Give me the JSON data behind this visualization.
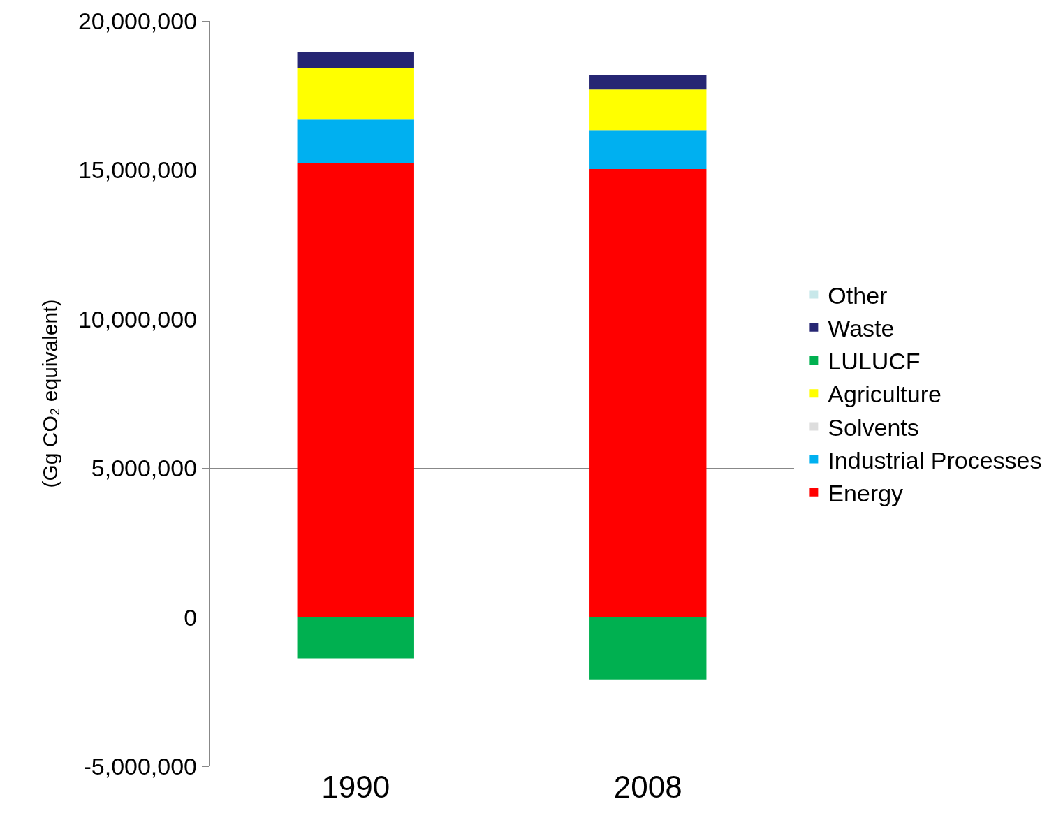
{
  "chart_data": {
    "type": "bar",
    "stacked": true,
    "ylabel": "(Gg CO₂ equivalent)",
    "categories": [
      "1990",
      "2008"
    ],
    "series": [
      {
        "name": "Energy",
        "color": "#ff0000",
        "values": [
          15240000,
          15030000
        ]
      },
      {
        "name": "Industrial Processes",
        "color": "#00b0f0",
        "values": [
          1450000,
          1310000
        ]
      },
      {
        "name": "Solvents",
        "color": "#dddddd",
        "values": [
          0,
          0
        ]
      },
      {
        "name": "Agriculture",
        "color": "#ffff00",
        "values": [
          1740000,
          1360000
        ]
      },
      {
        "name": "LULUCF",
        "color": "#00b050",
        "values": [
          -1380000,
          -2090000
        ]
      },
      {
        "name": "Waste",
        "color": "#262673",
        "values": [
          540000,
          490000
        ]
      },
      {
        "name": "Other",
        "color": "#c8e8ea",
        "values": [
          0,
          0
        ]
      }
    ],
    "ylim": [
      -5000000,
      20000000
    ],
    "yticks": [
      {
        "value": -5000000,
        "label": "-5,000,000"
      },
      {
        "value": 0,
        "label": "0"
      },
      {
        "value": 5000000,
        "label": "5,000,000"
      },
      {
        "value": 10000000,
        "label": "10,000,000"
      },
      {
        "value": 15000000,
        "label": "15,000,000"
      },
      {
        "value": 20000000,
        "label": "20,000,000"
      }
    ],
    "grid": "y",
    "legend": "right"
  }
}
